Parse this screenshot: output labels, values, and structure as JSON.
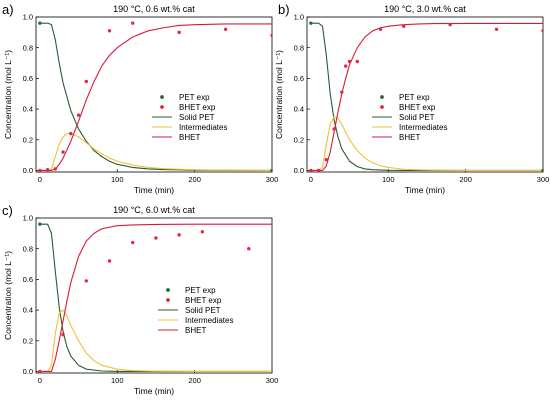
{
  "colors": {
    "pet": "#1e6b3c",
    "bhet": "#e02a44",
    "solid_pet": "#2a5c2f",
    "intermediates": "#f1c232",
    "bhet_model": "#d81b3d"
  },
  "chart_data": [
    {
      "type": "scatter",
      "panel_label": "a)",
      "title": "190 °C, 0.6 wt.% cat",
      "xlabel": "Time (min)",
      "ylabel": "Concentration (mol L⁻¹)",
      "xlim": [
        -5,
        300
      ],
      "ylim": [
        -0.01,
        1.0
      ],
      "xticks": [
        0,
        100,
        200,
        300
      ],
      "xtick_labels": [
        "0",
        "100",
        "200",
        "300"
      ],
      "yticks": [
        0.0,
        0.2,
        0.4,
        0.6,
        0.8,
        1.0
      ],
      "ytick_labels": [
        "0.0",
        "0.2",
        "0.4",
        "0.6",
        "0.8",
        "1.0"
      ],
      "grid": false,
      "legend_position": "right",
      "legend": [
        "PET exp",
        "BHET exp",
        "Solid PET",
        "Intermediates",
        "BHET"
      ],
      "series": [
        {
          "name": "PET exp",
          "kind": "points",
          "x": [
            0,
            300
          ],
          "y": [
            0.96,
            0.0
          ]
        },
        {
          "name": "BHET exp",
          "kind": "points",
          "x": [
            0,
            10,
            20,
            30,
            40,
            50,
            60,
            90,
            120,
            180,
            240,
            300
          ],
          "y": [
            0.0,
            0.005,
            0.01,
            0.12,
            0.24,
            0.36,
            0.58,
            0.91,
            0.96,
            0.9,
            0.92,
            0.88
          ]
        },
        {
          "name": "Solid PET",
          "kind": "line",
          "x": [
            0,
            10,
            15,
            20,
            25,
            30,
            40,
            50,
            60,
            70,
            80,
            90,
            100,
            120,
            140,
            160,
            180,
            200,
            240,
            300
          ],
          "y": [
            0.96,
            0.96,
            0.95,
            0.85,
            0.7,
            0.57,
            0.39,
            0.27,
            0.19,
            0.13,
            0.09,
            0.06,
            0.04,
            0.02,
            0.01,
            0.006,
            0.004,
            0.002,
            0.001,
            0.0
          ]
        },
        {
          "name": "Intermediates",
          "kind": "line",
          "x": [
            0,
            10,
            15,
            20,
            25,
            30,
            35,
            40,
            50,
            60,
            70,
            80,
            90,
            100,
            120,
            140,
            160,
            180,
            200,
            240,
            300
          ],
          "y": [
            0.0,
            0.0,
            0.01,
            0.09,
            0.17,
            0.22,
            0.24,
            0.24,
            0.22,
            0.18,
            0.14,
            0.11,
            0.08,
            0.06,
            0.035,
            0.02,
            0.012,
            0.008,
            0.005,
            0.002,
            0.0
          ]
        },
        {
          "name": "BHET",
          "kind": "line",
          "x": [
            0,
            10,
            15,
            20,
            25,
            30,
            40,
            50,
            60,
            70,
            80,
            90,
            100,
            120,
            140,
            160,
            180,
            200,
            240,
            300
          ],
          "y": [
            0.0,
            0.0,
            0.0,
            0.01,
            0.04,
            0.08,
            0.19,
            0.32,
            0.46,
            0.58,
            0.68,
            0.75,
            0.8,
            0.87,
            0.91,
            0.93,
            0.945,
            0.95,
            0.955,
            0.955
          ]
        }
      ]
    },
    {
      "type": "scatter",
      "panel_label": "b)",
      "title": "190 °C, 3.0 wt.% cat",
      "xlabel": "Time (min)",
      "ylabel": "Concentration (mol L⁻¹)",
      "xlim": [
        -5,
        300
      ],
      "ylim": [
        -0.01,
        1.0
      ],
      "xticks": [
        0,
        100,
        200,
        300
      ],
      "xtick_labels": [
        "0",
        "100",
        "200",
        "300"
      ],
      "yticks": [
        0.0,
        0.2,
        0.4,
        0.6,
        0.8,
        1.0
      ],
      "ytick_labels": [
        "0.0",
        "0.2",
        "0.4",
        "0.6",
        "0.8",
        "1.0"
      ],
      "grid": false,
      "legend_position": "right",
      "legend": [
        "PET exp",
        "BHET exp",
        "Solid PET",
        "Intermediates",
        "BHET"
      ],
      "series": [
        {
          "name": "PET exp",
          "kind": "points",
          "x": [
            0,
            300
          ],
          "y": [
            0.96,
            0.0
          ]
        },
        {
          "name": "BHET exp",
          "kind": "points",
          "x": [
            0,
            10,
            20,
            30,
            40,
            45,
            50,
            60,
            90,
            120,
            180,
            240,
            300
          ],
          "y": [
            0.0,
            0.0,
            0.07,
            0.27,
            0.51,
            0.68,
            0.71,
            0.71,
            0.92,
            0.94,
            0.95,
            0.92,
            0.91
          ]
        },
        {
          "name": "Solid PET",
          "kind": "line",
          "x": [
            0,
            10,
            15,
            20,
            25,
            30,
            35,
            40,
            50,
            60,
            70,
            80,
            100,
            120,
            160,
            200,
            300
          ],
          "y": [
            0.96,
            0.96,
            0.94,
            0.75,
            0.5,
            0.33,
            0.22,
            0.14,
            0.06,
            0.025,
            0.01,
            0.005,
            0.001,
            0.0,
            0.0,
            0.0,
            0.0
          ]
        },
        {
          "name": "Intermediates",
          "kind": "line",
          "x": [
            0,
            10,
            15,
            20,
            25,
            30,
            35,
            40,
            45,
            50,
            60,
            70,
            80,
            90,
            100,
            120,
            140,
            160,
            200,
            300
          ],
          "y": [
            0.0,
            0.0,
            0.02,
            0.17,
            0.3,
            0.35,
            0.34,
            0.3,
            0.25,
            0.2,
            0.13,
            0.08,
            0.05,
            0.03,
            0.02,
            0.008,
            0.004,
            0.002,
            0.0,
            0.0
          ]
        },
        {
          "name": "BHET",
          "kind": "line",
          "x": [
            0,
            10,
            15,
            20,
            25,
            30,
            35,
            40,
            45,
            50,
            60,
            70,
            80,
            90,
            100,
            120,
            140,
            160,
            200,
            300
          ],
          "y": [
            0.0,
            0.0,
            0.0,
            0.03,
            0.12,
            0.25,
            0.38,
            0.5,
            0.6,
            0.69,
            0.8,
            0.87,
            0.91,
            0.93,
            0.94,
            0.95,
            0.955,
            0.957,
            0.958,
            0.958
          ]
        }
      ]
    },
    {
      "type": "scatter",
      "panel_label": "c)",
      "title": "190 °C, 6.0 wt.% cat",
      "xlabel": "Time (min)",
      "ylabel": "Concentration (mol L⁻¹)",
      "xlim": [
        -5,
        300
      ],
      "ylim": [
        -0.01,
        1.0
      ],
      "xticks": [
        0,
        100,
        200,
        300
      ],
      "xtick_labels": [
        "0",
        "100",
        "200",
        "300"
      ],
      "yticks": [
        0.0,
        0.2,
        0.4,
        0.6,
        0.8,
        1.0
      ],
      "ytick_labels": [
        "0.0",
        "0.2",
        "0.4",
        "0.6",
        "0.8",
        "1.0"
      ],
      "grid": false,
      "legend_position": "right",
      "legend": [
        "PET exp",
        "BHET exp",
        "Solid PET",
        "Intermediates",
        "BHET"
      ],
      "series": [
        {
          "name": "PET exp",
          "kind": "points",
          "x": [
            0
          ],
          "y": [
            0.96
          ]
        },
        {
          "name": "BHET exp",
          "kind": "points",
          "x": [
            0,
            30,
            60,
            90,
            120,
            150,
            180,
            210,
            270
          ],
          "y": [
            0.0,
            0.24,
            0.59,
            0.72,
            0.84,
            0.87,
            0.89,
            0.91,
            0.8
          ]
        },
        {
          "name": "Solid PET",
          "kind": "line",
          "x": [
            0,
            10,
            15,
            20,
            25,
            30,
            35,
            40,
            50,
            60,
            80,
            100,
            150,
            300
          ],
          "y": [
            0.96,
            0.96,
            0.9,
            0.65,
            0.42,
            0.26,
            0.16,
            0.1,
            0.04,
            0.015,
            0.003,
            0.0,
            0.0,
            0.0
          ]
        },
        {
          "name": "Intermediates",
          "kind": "line",
          "x": [
            0,
            10,
            15,
            20,
            25,
            30,
            35,
            40,
            50,
            60,
            70,
            80,
            100,
            120,
            150,
            200,
            300
          ],
          "y": [
            0.0,
            0.0,
            0.04,
            0.25,
            0.38,
            0.4,
            0.36,
            0.3,
            0.2,
            0.12,
            0.07,
            0.04,
            0.015,
            0.006,
            0.002,
            0.0,
            0.0
          ]
        },
        {
          "name": "BHET",
          "kind": "line",
          "x": [
            0,
            10,
            15,
            20,
            25,
            30,
            35,
            40,
            50,
            60,
            70,
            80,
            100,
            120,
            150,
            200,
            300
          ],
          "y": [
            0.0,
            0.0,
            0.0,
            0.08,
            0.2,
            0.33,
            0.46,
            0.58,
            0.75,
            0.85,
            0.9,
            0.93,
            0.95,
            0.955,
            0.958,
            0.96,
            0.96
          ]
        }
      ]
    }
  ]
}
